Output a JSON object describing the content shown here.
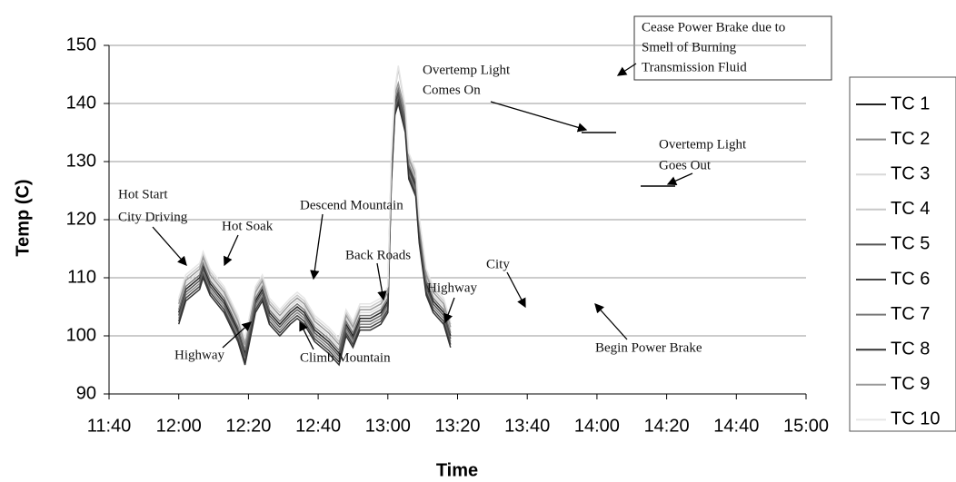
{
  "chart_data": {
    "type": "line",
    "ylabel": "Temp (C)",
    "xlabel": "Time",
    "xlim": [
      700,
      900
    ],
    "ylim": [
      90,
      150
    ],
    "xticks": [
      {
        "value": 700,
        "label": "11:40"
      },
      {
        "value": 720,
        "label": "12:00"
      },
      {
        "value": 740,
        "label": "12:20"
      },
      {
        "value": 760,
        "label": "12:40"
      },
      {
        "value": 780,
        "label": "13:00"
      },
      {
        "value": 800,
        "label": "13:20"
      },
      {
        "value": 820,
        "label": "13:40"
      },
      {
        "value": 840,
        "label": "14:00"
      },
      {
        "value": 860,
        "label": "14:20"
      },
      {
        "value": 880,
        "label": "14:40"
      },
      {
        "value": 900,
        "label": "15:00"
      }
    ],
    "yticks": [
      90,
      100,
      110,
      120,
      130,
      140,
      150
    ],
    "grid": true,
    "legend": "right",
    "x": [
      720,
      722,
      726,
      727,
      729,
      733,
      737,
      739,
      742,
      744,
      746,
      749,
      752,
      754,
      756,
      759,
      763,
      766,
      768,
      770,
      772,
      775,
      778,
      780,
      781,
      782,
      783,
      785,
      786,
      788,
      789,
      791,
      793,
      796,
      798
    ],
    "series": [
      {
        "name": "TC 1",
        "color": "#222222",
        "values": [
          104,
          108,
          110,
          112,
          109,
          106,
          101,
          97,
          106,
          108,
          104,
          102,
          104,
          105,
          104,
          101,
          99,
          97,
          102,
          100,
          103,
          103,
          104,
          106,
          128,
          140,
          142,
          137,
          129,
          126,
          118,
          109,
          106,
          104,
          100
        ]
      },
      {
        "name": "TC 2",
        "color": "#888888",
        "values": [
          103,
          107,
          109,
          111,
          108,
          105,
          100,
          96,
          105,
          107,
          103,
          101,
          103,
          104,
          103,
          100,
          98,
          96,
          101,
          99,
          102,
          102,
          103,
          105,
          127,
          139,
          141,
          136,
          128,
          125,
          117,
          108,
          105,
          103,
          99
        ]
      },
      {
        "name": "TC 3",
        "color": "#d8d8d8",
        "values": [
          105,
          109,
          111,
          113,
          110,
          107,
          102,
          98,
          107,
          109,
          105,
          103,
          105,
          106,
          105,
          102,
          100,
          98,
          103,
          101,
          104,
          104,
          105,
          107,
          129,
          141,
          143,
          138,
          130,
          127,
          119,
          110,
          107,
          105,
          101
        ]
      },
      {
        "name": "TC 4",
        "color": "#c8c8c8",
        "values": [
          106,
          110,
          112,
          114,
          111,
          108,
          103,
          99,
          108,
          110,
          106,
          104,
          106,
          107,
          106,
          103,
          101,
          99,
          104,
          102,
          105,
          105,
          106,
          108,
          130,
          142,
          146,
          139,
          131,
          128,
          120,
          111,
          108,
          106,
          102
        ]
      },
      {
        "name": "TC 5",
        "color": "#555555",
        "values": [
          103.5,
          107.5,
          109.5,
          111.5,
          108.5,
          105.5,
          100.5,
          96.5,
          105.5,
          107.5,
          103.5,
          101.5,
          103.5,
          104.5,
          103.5,
          100.5,
          98.5,
          96.5,
          101.5,
          99.5,
          102.5,
          102.5,
          103.5,
          105.5,
          127.5,
          139.5,
          141.5,
          136.5,
          128.5,
          125.5,
          117.5,
          108.5,
          105.5,
          103.5,
          99.5
        ]
      },
      {
        "name": "TC 6",
        "color": "#444444",
        "values": [
          102.5,
          106.5,
          108.5,
          110.5,
          107.5,
          104.5,
          99.5,
          95.5,
          104.5,
          106.5,
          102.5,
          100.5,
          102.5,
          103.5,
          102.5,
          99.5,
          97.5,
          95.5,
          100.5,
          98.5,
          101.5,
          101.5,
          102.5,
          104.5,
          126.5,
          138.5,
          140.5,
          135.5,
          127.5,
          124.5,
          116.5,
          107.5,
          104.5,
          102.5,
          98.5
        ]
      },
      {
        "name": "TC 7",
        "color": "#777777",
        "values": [
          104.5,
          108.5,
          110.5,
          112.5,
          109.5,
          106.5,
          101.5,
          97.5,
          106.5,
          108.5,
          104.5,
          102.5,
          104.5,
          105.5,
          104.5,
          101.5,
          99.5,
          97.5,
          102.5,
          100.5,
          103.5,
          103.5,
          104.5,
          106.5,
          128.5,
          140.5,
          142.5,
          137.5,
          129.5,
          126.5,
          118.5,
          109.5,
          106.5,
          104.5,
          100.5
        ]
      },
      {
        "name": "TC 8",
        "color": "#333333",
        "values": [
          102,
          106,
          108,
          110,
          107,
          104,
          99,
          95,
          104,
          106,
          102,
          100,
          102,
          103,
          102,
          99,
          97,
          95,
          100,
          98,
          101,
          101,
          102,
          104,
          126,
          138,
          140,
          135,
          127,
          124,
          116,
          107,
          104,
          102,
          98
        ]
      },
      {
        "name": "TC 9",
        "color": "#999999",
        "values": [
          105.5,
          109.5,
          111.5,
          113.5,
          110.5,
          107.5,
          102.5,
          98.5,
          107.5,
          109.5,
          105.5,
          103.5,
          105.5,
          106.5,
          105.5,
          102.5,
          100.5,
          98.5,
          103.5,
          101.5,
          104.5,
          104.5,
          105.5,
          107.5,
          129.5,
          141.5,
          143.5,
          138.5,
          130.5,
          127.5,
          119.5,
          110.5,
          107.5,
          105.5,
          101.5
        ]
      },
      {
        "name": "TC 10",
        "color": "#e6e6e6",
        "values": [
          106.5,
          110.5,
          112.5,
          114.5,
          111.5,
          108.5,
          103.5,
          99.5,
          108.5,
          110.5,
          106.5,
          104.5,
          106.5,
          107.5,
          106.5,
          103.5,
          101.5,
          99.5,
          104.5,
          102.5,
          105.5,
          105.5,
          106.5,
          108.5,
          130.5,
          142.5,
          146.5,
          139.5,
          131.5,
          128.5,
          120.5,
          111.5,
          108.5,
          106.5,
          102.5
        ]
      }
    ],
    "annotations": [
      [
        "Hot Start",
        "City Driving"
      ],
      [
        "Hot Soak"
      ],
      [
        "Descend Mountain"
      ],
      [
        "Back Roads"
      ],
      [
        "Highway"
      ],
      [
        "City"
      ],
      [
        "Overtemp Light",
        "Comes On"
      ],
      [
        "Cease Power Brake due to",
        "Smell of Burning",
        "Transmission Fluid"
      ],
      [
        "Overtemp Light",
        "Goes Out"
      ],
      [
        "Highway"
      ],
      [
        "Climb Mountain"
      ],
      [
        "Begin Power Brake"
      ]
    ]
  }
}
